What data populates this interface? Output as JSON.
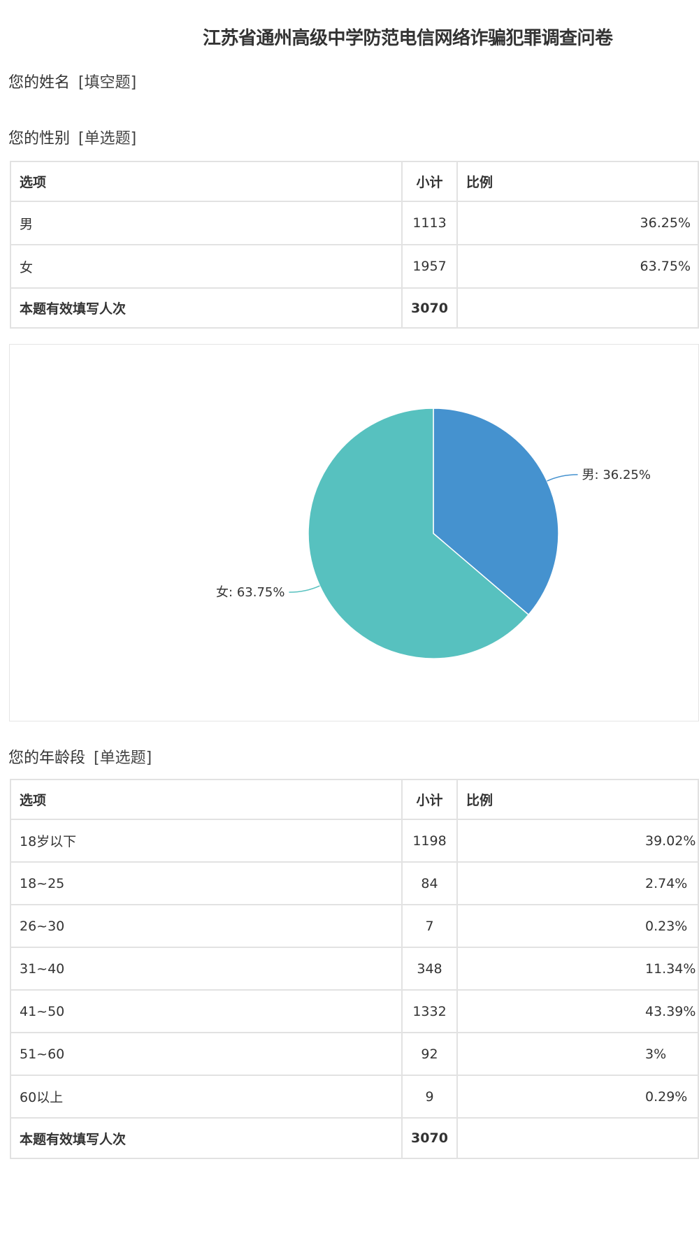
{
  "title": "江苏省通州高级中学防范电信网络诈骗犯罪调查问卷",
  "questions": [
    {
      "label": "您的姓名",
      "type": "[填空题]"
    },
    {
      "label": "您的性别",
      "type": "[单选题]"
    },
    {
      "label": "您的年龄段",
      "type": "[单选题]"
    }
  ],
  "table_headers": [
    "选项",
    "小计",
    "比例"
  ],
  "gender_table": {
    "rows": [
      {
        "option": "男",
        "count": "1113",
        "pct": "36.25%"
      },
      {
        "option": "女",
        "count": "1957",
        "pct": "63.75%"
      }
    ],
    "total_label": "本题有效填写人次",
    "total": "3070"
  },
  "age_table": {
    "rows": [
      {
        "option": "18岁以下",
        "count": "1198",
        "pct": "39.02%"
      },
      {
        "option": "18~25",
        "count": "84",
        "pct": "2.74%"
      },
      {
        "option": "26~30",
        "count": "7",
        "pct": "0.23%"
      },
      {
        "option": "31~40",
        "count": "348",
        "pct": "11.34%"
      },
      {
        "option": "41~50",
        "count": "1332",
        "pct": "43.39%"
      },
      {
        "option": "51~60",
        "count": "92",
        "pct": "3%"
      },
      {
        "option": "60以上",
        "count": "9",
        "pct": "0.29%"
      }
    ],
    "total_label": "本题有效填写人次",
    "total": "3070"
  },
  "chart_data": {
    "type": "pie",
    "categories": [
      "男",
      "女"
    ],
    "values": [
      36.25,
      63.75
    ],
    "labels": [
      "男: 36.25%",
      "女: 63.75%"
    ],
    "colors": [
      "#4592cf",
      "#57c1bf"
    ],
    "legend": "none"
  }
}
